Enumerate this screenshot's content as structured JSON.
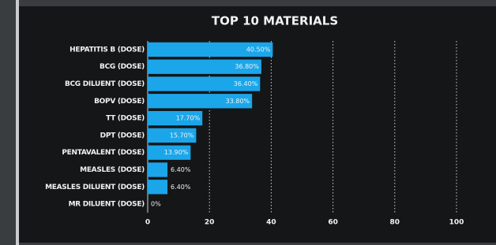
{
  "chart_data": {
    "type": "hbar",
    "title": "TOP 10 MATERIALS",
    "categories": [
      "HEPATITIS B (DOSE)",
      "BCG (DOSE)",
      "BCG DILUENT (DOSE)",
      "BOPV (DOSE)",
      "TT (DOSE)",
      "DPT (DOSE)",
      "PENTAVALENT (DOSE)",
      "MEASLES (DOSE)",
      "MEASLES DILUENT (DOSE)",
      "MR DILUENT (DOSE)"
    ],
    "values": [
      40.5,
      36.8,
      36.4,
      33.8,
      17.7,
      15.7,
      13.9,
      6.4,
      6.4,
      0
    ],
    "value_labels": [
      "40.50%",
      "36.80%",
      "36.40%",
      "33.80%",
      "17.70%",
      "15.70%",
      "13.90%",
      "6.40%",
      "6.40%",
      "0%"
    ],
    "color": "#1ba6ea",
    "xlim": [
      0,
      100
    ],
    "xticks": [
      0,
      20,
      40,
      60,
      80,
      100
    ],
    "grid": true
  }
}
